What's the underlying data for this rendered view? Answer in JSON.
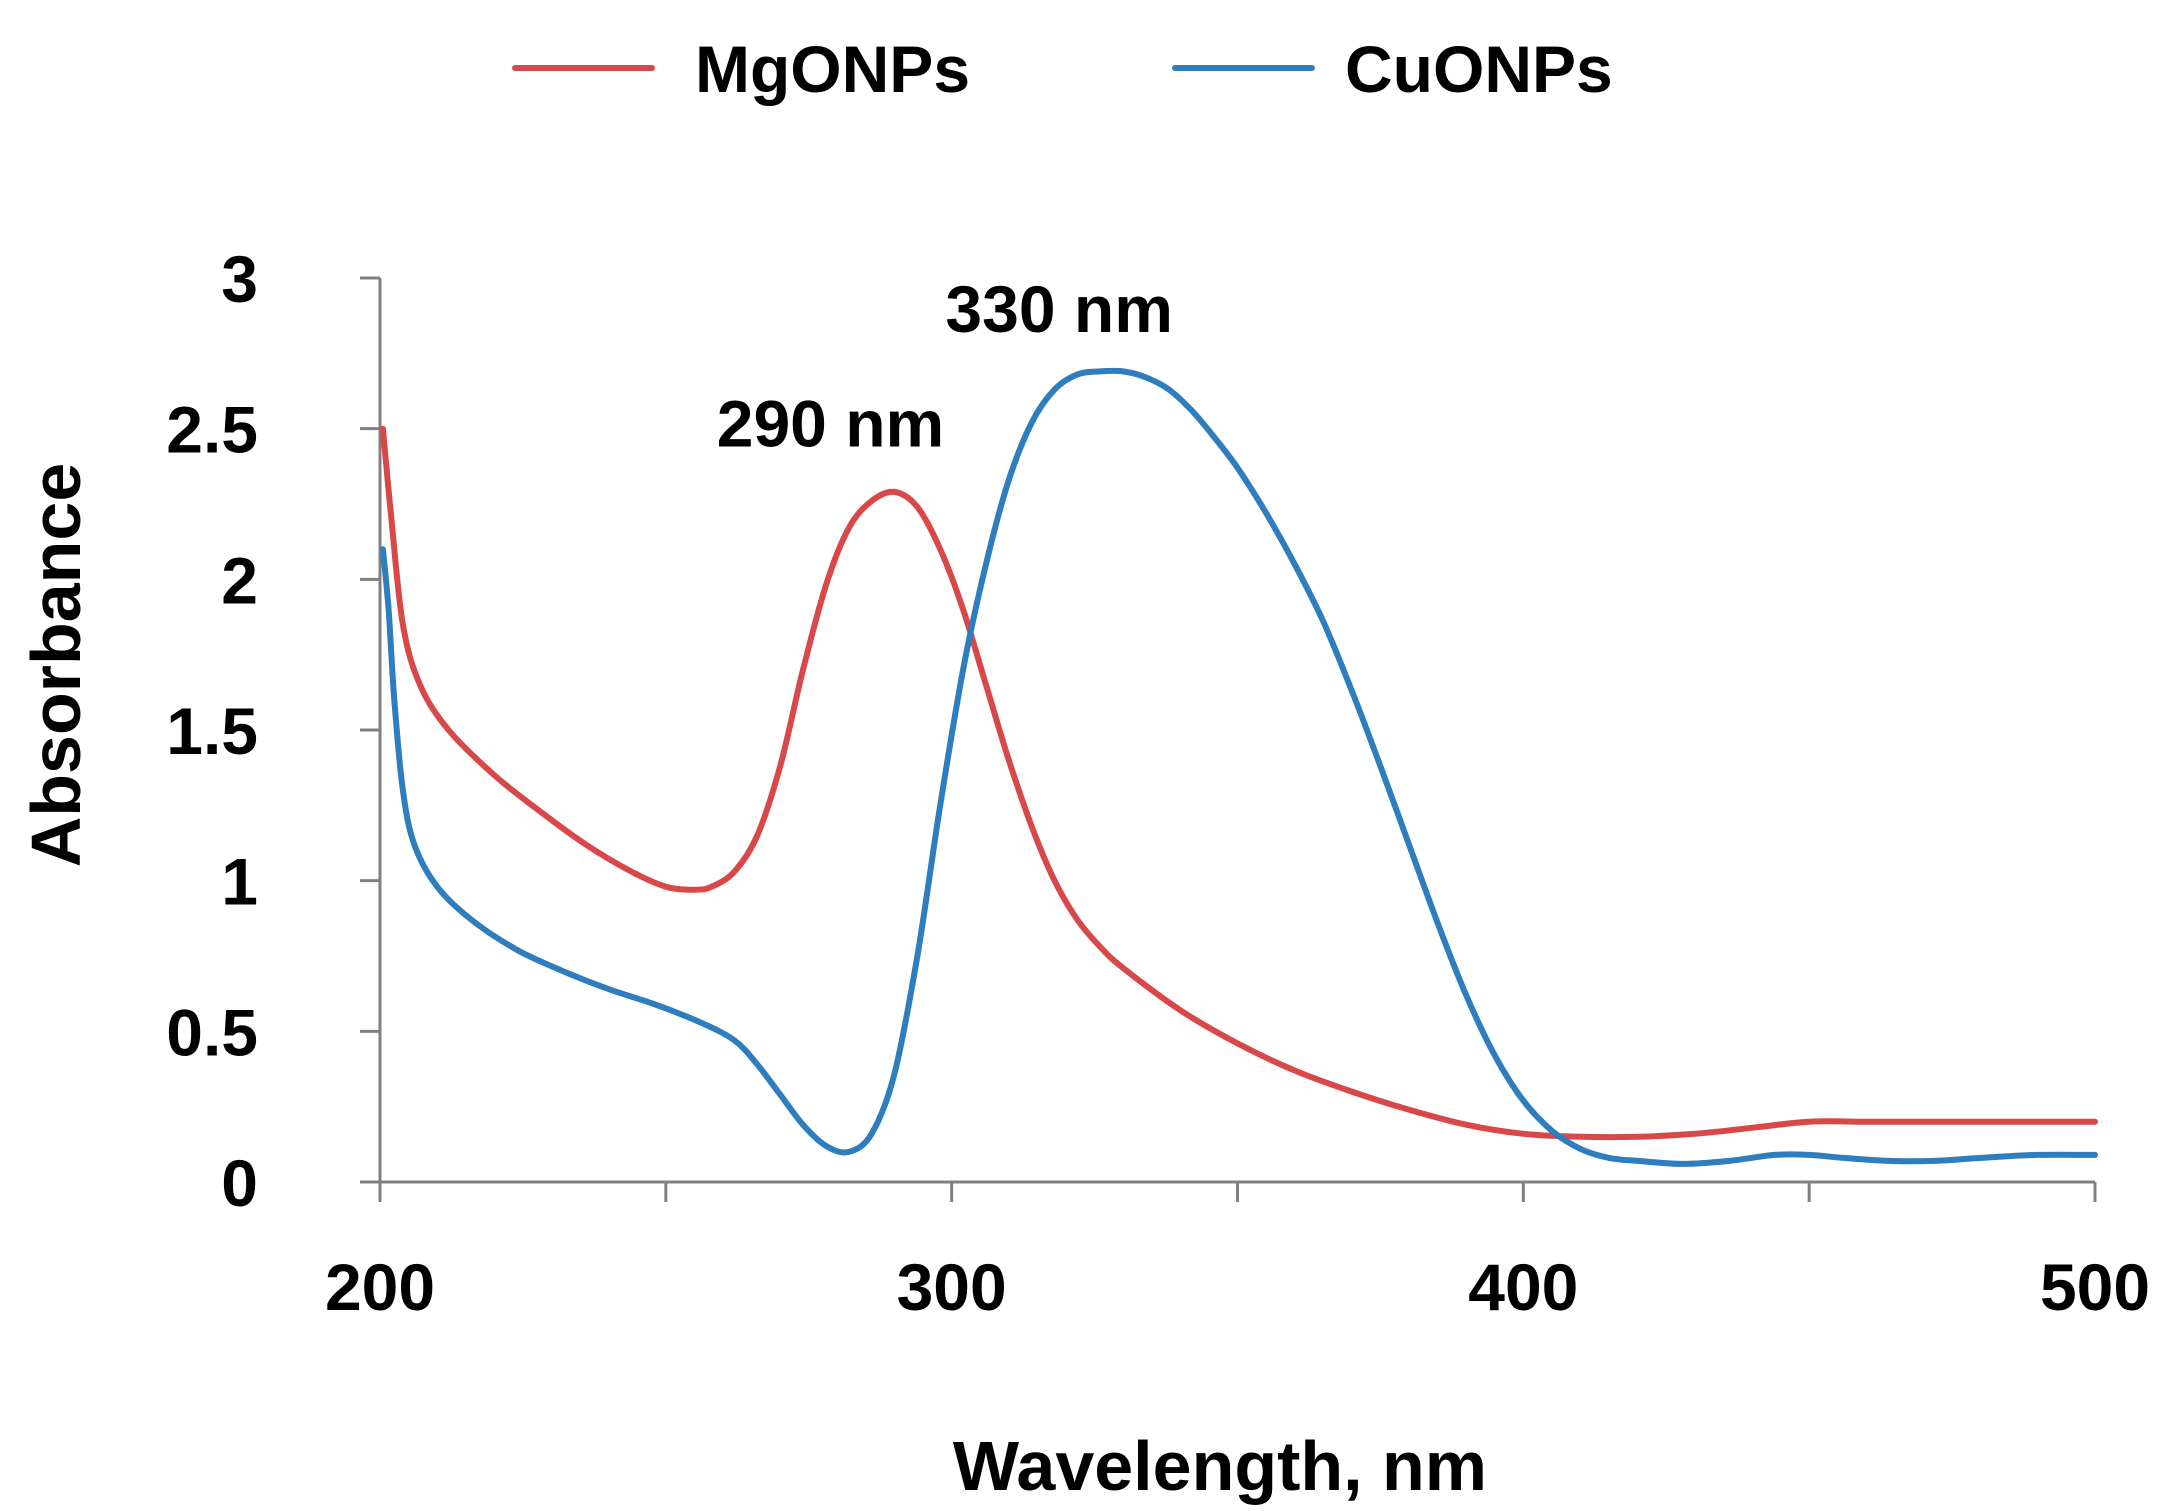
{
  "chart_data": {
    "type": "line",
    "title": "",
    "xlabel": "Wavelength, nm",
    "ylabel": "Absorbance",
    "xlim": [
      200,
      500
    ],
    "ylim": [
      0,
      3
    ],
    "xticks": [
      200,
      300,
      400,
      500
    ],
    "xtick_labels": [
      "200",
      "300",
      "400",
      "500"
    ],
    "xminor_ticks": [
      250,
      350,
      450
    ],
    "yticks": [
      0,
      0.5,
      1,
      1.5,
      2,
      2.5,
      3
    ],
    "ytick_labels": [
      "0",
      "0.5",
      "1",
      "1.5",
      "2",
      "2.5",
      "3"
    ],
    "grid": false,
    "legend_position": "top-center",
    "series": [
      {
        "name": "MgONPs",
        "color": "#d94848",
        "x": [
          200.5,
          202,
          204,
          207,
          212,
          220,
          228,
          236,
          244,
          250,
          255,
          258,
          262,
          266,
          270,
          274,
          278,
          282,
          286,
          290,
          294,
          298,
          302,
          306,
          310,
          314,
          318,
          322,
          326,
          330,
          340,
          350,
          360,
          370,
          380,
          390,
          400,
          410,
          420,
          430,
          440,
          450,
          460,
          470,
          480,
          490,
          500
        ],
        "y": [
          2.5,
          2.2,
          1.85,
          1.65,
          1.5,
          1.35,
          1.23,
          1.12,
          1.03,
          0.98,
          0.97,
          0.98,
          1.03,
          1.15,
          1.38,
          1.7,
          1.98,
          2.17,
          2.26,
          2.29,
          2.24,
          2.1,
          1.9,
          1.65,
          1.4,
          1.18,
          1.0,
          0.87,
          0.78,
          0.71,
          0.57,
          0.46,
          0.37,
          0.3,
          0.24,
          0.19,
          0.16,
          0.15,
          0.15,
          0.16,
          0.18,
          0.2,
          0.2,
          0.2,
          0.2,
          0.2,
          0.2
        ]
      },
      {
        "name": "CuONPs",
        "color": "#2e7dbe",
        "x": [
          200.5,
          201.5,
          202.5,
          204,
          206,
          210,
          216,
          224,
          232,
          240,
          248,
          256,
          262,
          266,
          270,
          274,
          278,
          282,
          286,
          290,
          294,
          298,
          302,
          306,
          310,
          314,
          318,
          322,
          326,
          330,
          334,
          338,
          342,
          346,
          350,
          355,
          360,
          365,
          370,
          375,
          380,
          385,
          390,
          395,
          400,
          405,
          410,
          415,
          420,
          428,
          436,
          444,
          450,
          456,
          464,
          472,
          480,
          490,
          500
        ],
        "y": [
          2.1,
          1.9,
          1.6,
          1.3,
          1.12,
          0.98,
          0.87,
          0.77,
          0.7,
          0.64,
          0.59,
          0.53,
          0.47,
          0.39,
          0.29,
          0.19,
          0.12,
          0.1,
          0.16,
          0.36,
          0.75,
          1.25,
          1.7,
          2.05,
          2.33,
          2.52,
          2.63,
          2.68,
          2.69,
          2.69,
          2.67,
          2.63,
          2.56,
          2.47,
          2.37,
          2.22,
          2.05,
          1.86,
          1.63,
          1.38,
          1.12,
          0.86,
          0.62,
          0.42,
          0.27,
          0.17,
          0.11,
          0.08,
          0.07,
          0.06,
          0.07,
          0.09,
          0.09,
          0.08,
          0.07,
          0.07,
          0.08,
          0.09,
          0.09
        ]
      }
    ],
    "annotations": [
      {
        "text": "290 nm",
        "x": 290,
        "y": 2.52
      },
      {
        "text": "330 nm",
        "x": 330,
        "y": 2.9
      }
    ]
  }
}
